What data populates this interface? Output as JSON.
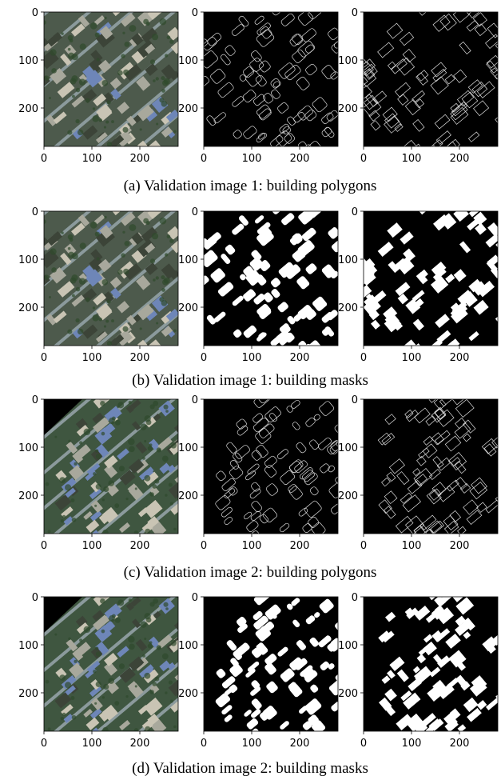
{
  "figure": {
    "axes": {
      "xlim": [
        0,
        280
      ],
      "ylim": [
        0,
        280
      ],
      "xticks": [
        0,
        100,
        200
      ],
      "yticks": [
        0,
        100,
        200
      ]
    },
    "subfigures": [
      {
        "caption": "(a) Validation image 1: building polygons"
      },
      {
        "caption": "(b) Validation image 1: building masks"
      },
      {
        "caption": "(c) Validation image 2: building polygons"
      },
      {
        "caption": "(d) Validation image 2: building masks"
      }
    ]
  }
}
